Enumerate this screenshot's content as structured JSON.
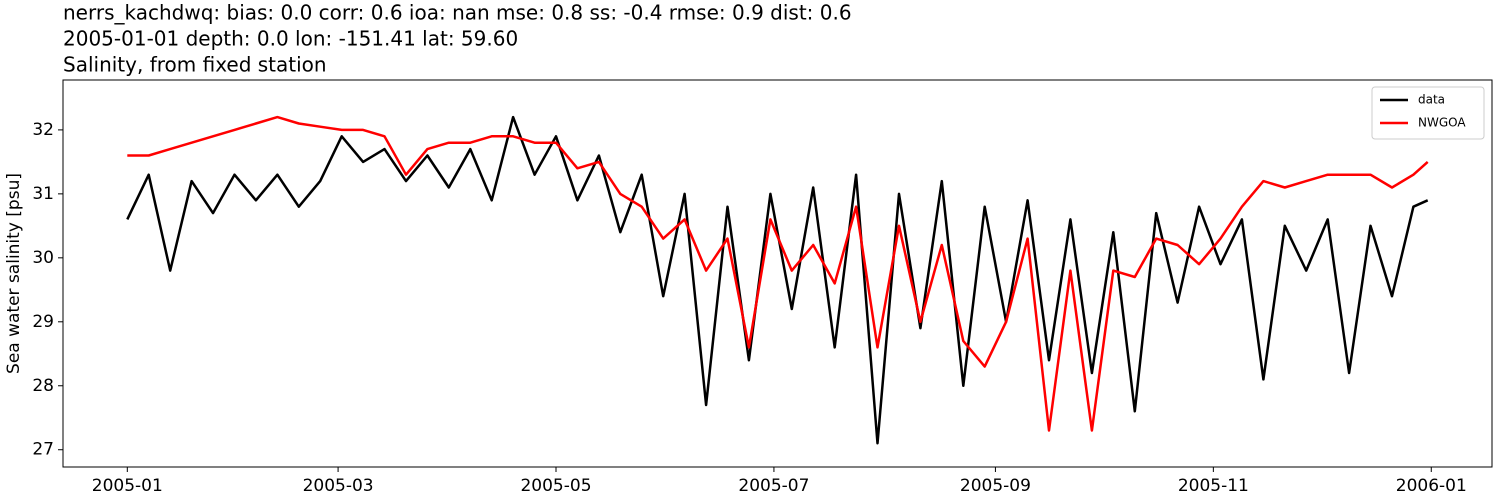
{
  "chart_data": {
    "type": "line",
    "title": [
      "nerrs_kachdwq: bias: 0.0  corr: 0.6  ioa: nan  mse: 0.8  ss: -0.4  rmse: 0.9  dist: 0.6",
      "2005-01-01 depth: 0.0 lon: -151.41 lat: 59.60",
      "Salinity, from fixed station"
    ],
    "y_label": "Sea water salinity [psu]",
    "x": [
      "2005-01-01",
      "2005-01-07",
      "2005-01-13",
      "2005-01-19",
      "2005-01-25",
      "2005-01-31",
      "2005-02-06",
      "2005-02-12",
      "2005-02-18",
      "2005-02-24",
      "2005-03-02",
      "2005-03-08",
      "2005-03-14",
      "2005-03-20",
      "2005-03-26",
      "2005-04-01",
      "2005-04-07",
      "2005-04-13",
      "2005-04-19",
      "2005-04-25",
      "2005-05-01",
      "2005-05-07",
      "2005-05-13",
      "2005-05-19",
      "2005-05-25",
      "2005-05-31",
      "2005-06-06",
      "2005-06-12",
      "2005-06-18",
      "2005-06-24",
      "2005-06-30",
      "2005-07-06",
      "2005-07-12",
      "2005-07-18",
      "2005-07-24",
      "2005-07-30",
      "2005-08-05",
      "2005-08-11",
      "2005-08-17",
      "2005-08-23",
      "2005-08-29",
      "2005-09-04",
      "2005-09-10",
      "2005-09-16",
      "2005-09-22",
      "2005-09-28",
      "2005-10-04",
      "2005-10-10",
      "2005-10-16",
      "2005-10-22",
      "2005-10-28",
      "2005-11-03",
      "2005-11-09",
      "2005-11-15",
      "2005-11-21",
      "2005-11-27",
      "2005-12-03",
      "2005-12-09",
      "2005-12-15",
      "2005-12-21",
      "2005-12-27",
      "2005-12-31"
    ],
    "series": [
      {
        "name": "data",
        "color": "#000000",
        "values": [
          30.6,
          31.3,
          29.8,
          31.2,
          30.7,
          31.3,
          30.9,
          31.3,
          30.8,
          31.2,
          31.9,
          31.5,
          31.7,
          31.2,
          31.6,
          31.1,
          31.7,
          30.9,
          32.2,
          31.3,
          31.9,
          30.9,
          31.6,
          30.4,
          31.3,
          29.4,
          31.0,
          27.7,
          30.8,
          28.4,
          31.0,
          29.2,
          31.1,
          28.6,
          31.3,
          27.1,
          31.0,
          28.9,
          31.2,
          28.0,
          30.8,
          29.0,
          30.9,
          28.4,
          30.6,
          28.2,
          30.4,
          27.6,
          30.7,
          29.3,
          30.8,
          29.9,
          30.6,
          28.1,
          30.5,
          29.8,
          30.6,
          28.2,
          30.5,
          29.4,
          30.8,
          30.9
        ]
      },
      {
        "name": "NWGOA",
        "color": "#ff0000",
        "values": [
          31.6,
          31.6,
          31.7,
          31.8,
          31.9,
          32.0,
          32.1,
          32.2,
          32.1,
          32.05,
          32.0,
          32.0,
          31.9,
          31.3,
          31.7,
          31.8,
          31.8,
          31.9,
          31.9,
          31.8,
          31.8,
          31.4,
          31.5,
          31.0,
          30.8,
          30.3,
          30.6,
          29.8,
          30.3,
          28.6,
          30.6,
          29.8,
          30.2,
          29.6,
          30.8,
          28.6,
          30.5,
          29.0,
          30.2,
          28.7,
          28.3,
          29.0,
          30.3,
          27.3,
          29.8,
          27.3,
          29.8,
          29.7,
          30.3,
          30.2,
          29.9,
          30.3,
          30.8,
          31.2,
          31.1,
          31.2,
          31.3,
          31.3,
          31.3,
          31.1,
          31.3,
          31.5
        ]
      }
    ],
    "xlim": [
      "2004-12-14",
      "2006-01-18"
    ],
    "xticks": [
      {
        "value": "2005-01-01",
        "label": "2005-01"
      },
      {
        "value": "2005-03-01",
        "label": "2005-03"
      },
      {
        "value": "2005-05-01",
        "label": "2005-05"
      },
      {
        "value": "2005-07-01",
        "label": "2005-07"
      },
      {
        "value": "2005-09-01",
        "label": "2005-09"
      },
      {
        "value": "2005-11-01",
        "label": "2005-11"
      },
      {
        "value": "2006-01-01",
        "label": "2006-01"
      }
    ],
    "ylim": [
      26.73,
      32.78
    ],
    "yticks": [
      27,
      28,
      29,
      30,
      31,
      32
    ],
    "legend": "upper right"
  }
}
